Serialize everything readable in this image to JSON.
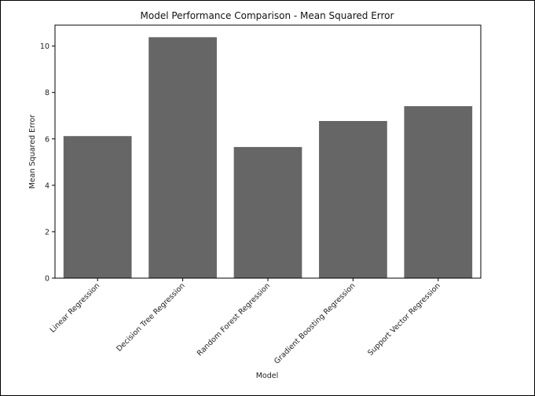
{
  "chart_data": {
    "type": "bar",
    "title": "Model Performance Comparison - Mean Squared Error",
    "xlabel": "Model",
    "ylabel": "Mean Squared Error",
    "categories": [
      "Linear Regression",
      "Decision Tree Regression",
      "Random Forest Regression",
      "Gradient Boosting Regression",
      "Support Vector Regression"
    ],
    "values": [
      6.12,
      10.38,
      5.65,
      6.77,
      7.41
    ],
    "ylim": [
      0,
      10.9
    ],
    "yticks": [
      0,
      2,
      4,
      6,
      8,
      10
    ],
    "grid": false,
    "bar_color": "#666666"
  }
}
